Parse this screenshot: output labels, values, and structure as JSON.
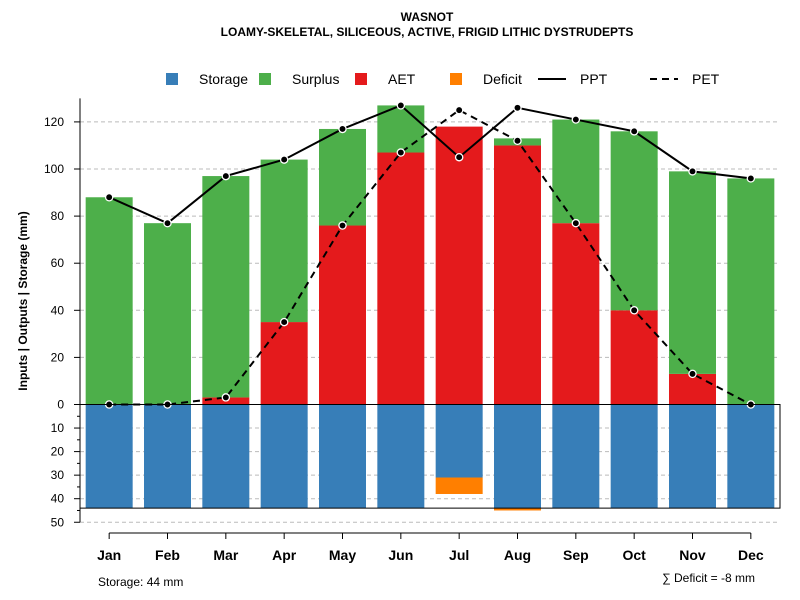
{
  "colors": {
    "storage": "#377EB8",
    "surplus": "#4DAF4A",
    "aet": "#E41A1C",
    "deficit": "#FF7F00",
    "line": "#000000",
    "grid": "#bbbbbb"
  },
  "chart_data": {
    "type": "bar",
    "title": "WASNOT",
    "subtitle": "LOAMY-SKELETAL, SILICEOUS, ACTIVE, FRIGID LITHIC DYSTRUDEPTS",
    "ylabel": "Inputs | Outputs | Storage    (mm)",
    "ylim": [
      -50,
      130
    ],
    "yticks_pos": [
      0,
      20,
      40,
      60,
      80,
      100,
      120
    ],
    "yticks_neg": [
      10,
      20,
      30,
      40,
      50
    ],
    "categories": [
      "Jan",
      "Feb",
      "Mar",
      "Apr",
      "May",
      "Jun",
      "Jul",
      "Aug",
      "Sep",
      "Oct",
      "Nov",
      "Dec"
    ],
    "legend": [
      {
        "key": "storage",
        "label": "Storage",
        "kind": "box"
      },
      {
        "key": "surplus",
        "label": "Surplus",
        "kind": "box"
      },
      {
        "key": "aet",
        "label": "AET",
        "kind": "box"
      },
      {
        "key": "deficit",
        "label": "Deficit",
        "kind": "box"
      },
      {
        "key": "ppt",
        "label": "PPT",
        "kind": "solid"
      },
      {
        "key": "pet",
        "label": "PET",
        "kind": "dashed"
      }
    ],
    "series": [
      {
        "name": "AET",
        "values": [
          0,
          0,
          3,
          35,
          76,
          107,
          118,
          110,
          77,
          40,
          13,
          0
        ]
      },
      {
        "name": "Surplus",
        "values": [
          88,
          77,
          94,
          69,
          41,
          20,
          0,
          3,
          44,
          76,
          86,
          96
        ]
      },
      {
        "name": "Storage",
        "values": [
          44,
          44,
          44,
          44,
          44,
          44,
          31,
          44,
          44,
          44,
          44,
          44
        ]
      },
      {
        "name": "Deficit",
        "values": [
          0,
          0,
          0,
          0,
          0,
          0,
          -7,
          -1,
          0,
          0,
          0,
          0
        ]
      },
      {
        "name": "PPT",
        "values": [
          88,
          77,
          97,
          104,
          117,
          127,
          105,
          126,
          121,
          116,
          99,
          96
        ]
      },
      {
        "name": "PET",
        "values": [
          0,
          0,
          3,
          35,
          76,
          107,
          125,
          112,
          77,
          40,
          13,
          0
        ]
      }
    ],
    "storage_capacity": 44
  },
  "annotations": {
    "storage_note": "Storage: 44 mm",
    "deficit_note": "∑ Deficit = -8 mm"
  }
}
